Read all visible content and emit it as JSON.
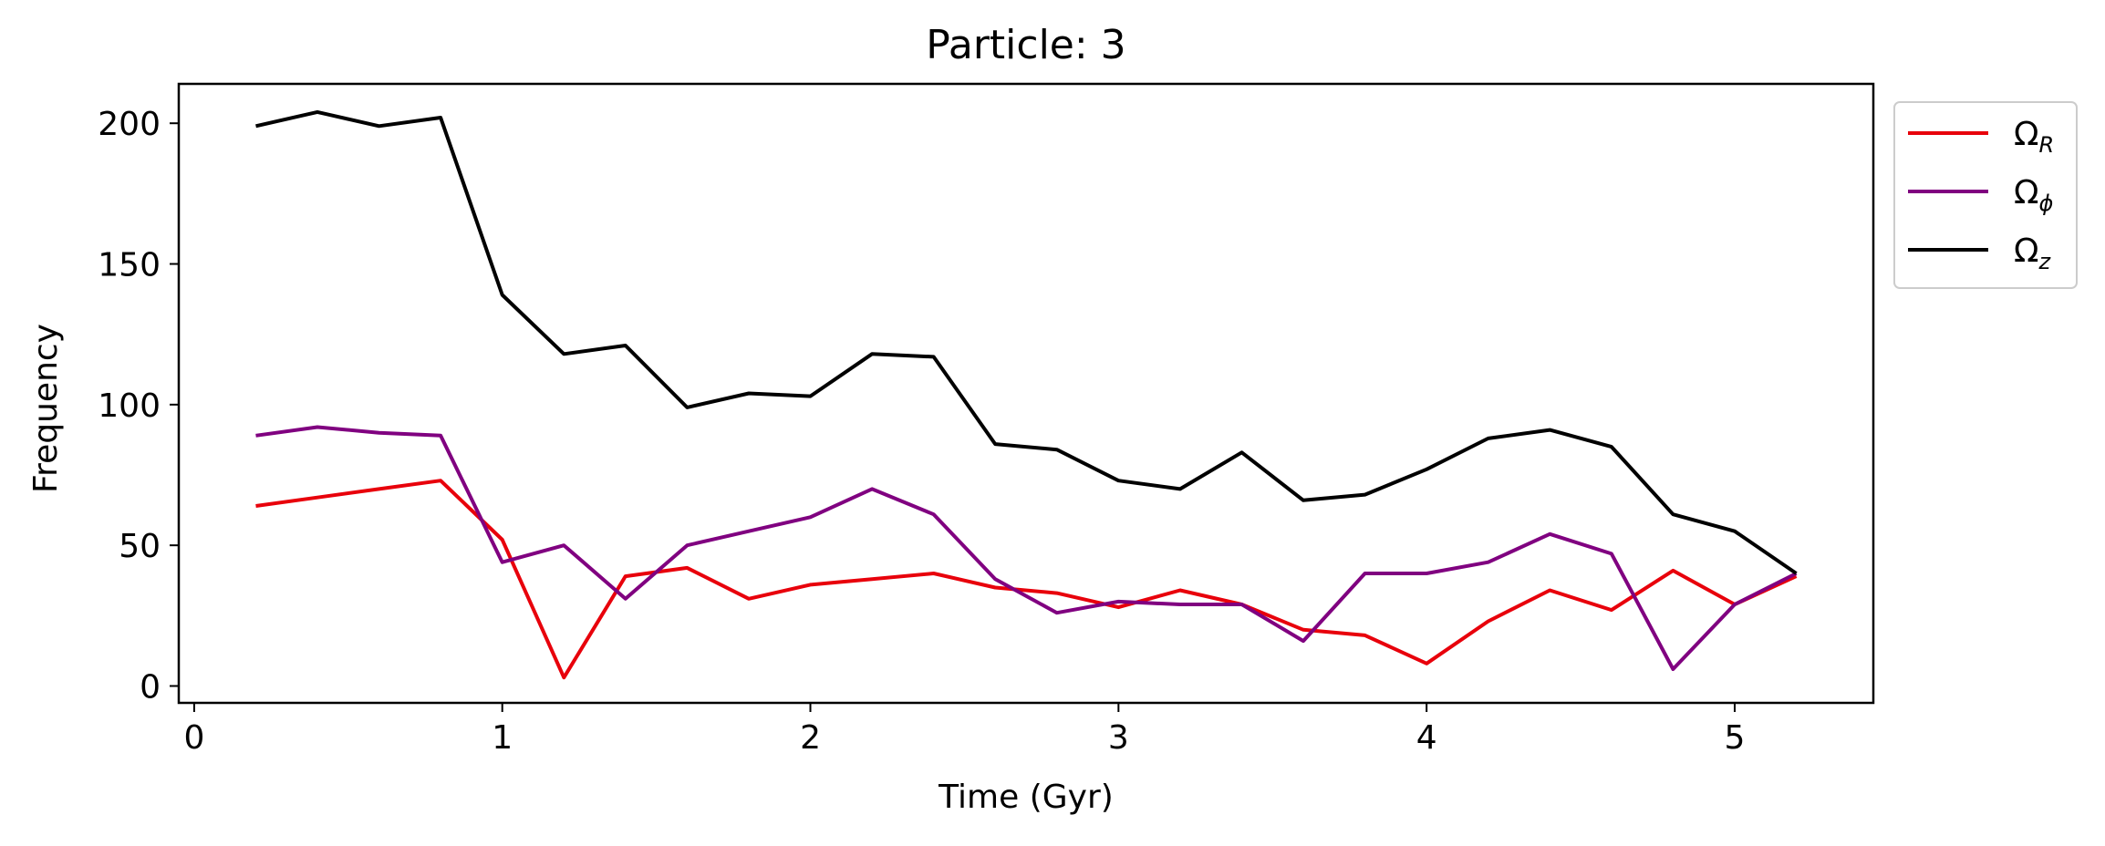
{
  "chart_data": {
    "type": "line",
    "title": "Particle: 3",
    "xlabel": "Time (Gyr)",
    "ylabel": "Frequency",
    "xlim": [
      -0.05,
      5.45
    ],
    "ylim": [
      -6,
      214
    ],
    "xticks": [
      0,
      1,
      2,
      3,
      4,
      5
    ],
    "yticks": [
      0,
      50,
      100,
      150,
      200
    ],
    "grid": false,
    "legend_position": "outside-top-right",
    "x": [
      0.2,
      0.4,
      0.6,
      0.8,
      1.0,
      1.2,
      1.4,
      1.6,
      1.8,
      2.0,
      2.2,
      2.4,
      2.6,
      2.8,
      3.0,
      3.2,
      3.4,
      3.6,
      3.8,
      4.0,
      4.2,
      4.4,
      4.6,
      4.8,
      5.0,
      5.2
    ],
    "series": [
      {
        "name": "Ω",
        "subscript": "R",
        "color": "#e8000b",
        "values": [
          64,
          67,
          70,
          73,
          52,
          3,
          39,
          42,
          31,
          36,
          38,
          40,
          35,
          33,
          28,
          34,
          29,
          20,
          18,
          8,
          23,
          34,
          27,
          41,
          29,
          39
        ]
      },
      {
        "name": "Ω",
        "subscript": "ϕ",
        "color": "#800080",
        "values": [
          89,
          92,
          90,
          89,
          44,
          50,
          31,
          50,
          55,
          60,
          70,
          61,
          38,
          26,
          30,
          29,
          29,
          16,
          40,
          40,
          44,
          54,
          47,
          6,
          29,
          40
        ]
      },
      {
        "name": "Ω",
        "subscript": "z",
        "color": "#000000",
        "values": [
          199,
          204,
          199,
          202,
          139,
          118,
          121,
          99,
          104,
          103,
          118,
          117,
          86,
          84,
          73,
          70,
          83,
          66,
          68,
          77,
          88,
          91,
          85,
          61,
          55,
          40
        ]
      }
    ]
  }
}
